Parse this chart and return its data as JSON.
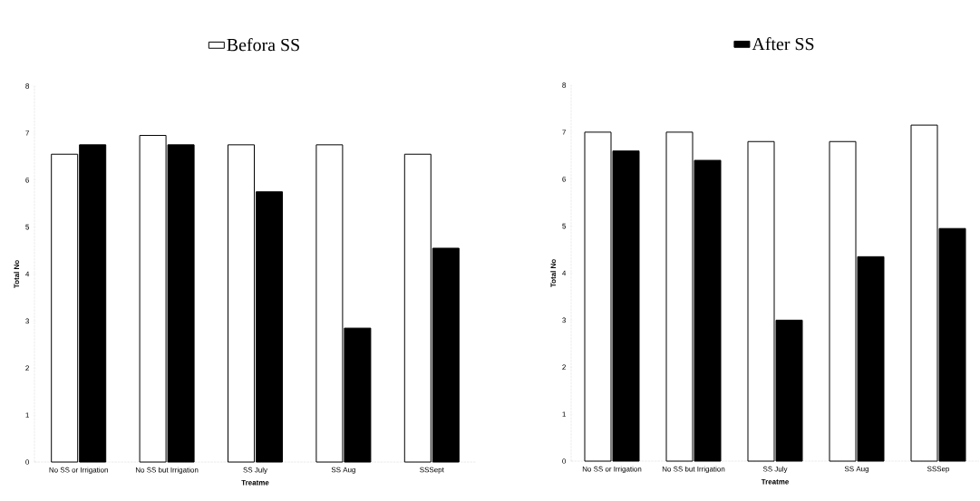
{
  "chart_data": [
    {
      "type": "bar",
      "xlabel": "Treatme",
      "ylabel": "Total No",
      "categories": [
        "No SS or Irrigation",
        "No SS but Irrigation",
        "SS July",
        "SS Aug",
        "SSSept"
      ],
      "series": [
        {
          "name": "Befora SS",
          "color": "#ffffff",
          "values": [
            6.55,
            6.95,
            6.75,
            6.75,
            6.55
          ]
        },
        {
          "color": "#000000",
          "values": [
            6.75,
            6.75,
            5.75,
            2.85,
            4.55
          ]
        }
      ],
      "ylim": [
        0,
        8
      ],
      "yticks": [
        0,
        1,
        2,
        3,
        4,
        5,
        6,
        7,
        8
      ],
      "legend": "top"
    },
    {
      "type": "bar",
      "xlabel": "Treatme",
      "ylabel": "Total No",
      "categories": [
        "No SS or Irrigation",
        "No SS but Irrigation",
        "SS July",
        "SS Aug",
        "SSSep"
      ],
      "series": [
        {
          "color": "#ffffff",
          "values": [
            7.0,
            7.0,
            6.8,
            6.8,
            7.15
          ]
        },
        {
          "name": "After SS",
          "color": "#000000",
          "values": [
            6.6,
            6.4,
            3.0,
            4.35,
            4.95
          ]
        }
      ],
      "ylim": [
        0,
        8
      ],
      "yticks": [
        0,
        1,
        2,
        3,
        4,
        5,
        6,
        7,
        8
      ],
      "legend": "top"
    }
  ]
}
